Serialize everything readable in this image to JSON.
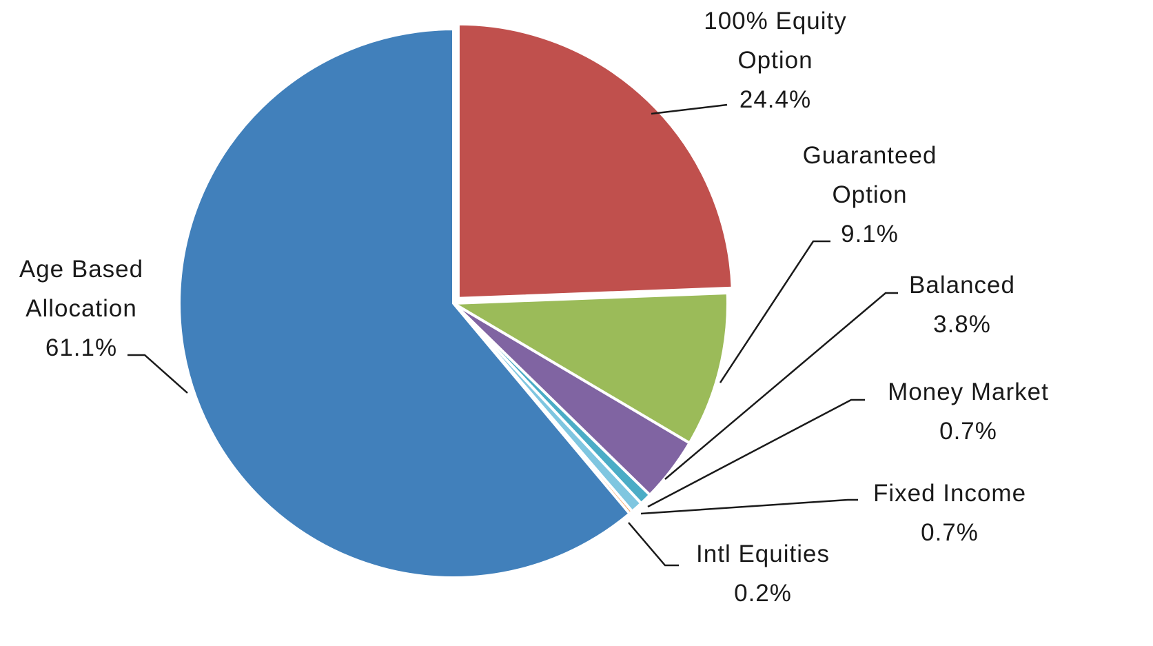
{
  "chart_data": {
    "type": "pie",
    "categories": [
      "100% Equity Option",
      "Guaranteed Option",
      "Balanced",
      "Money Market",
      "Fixed Income",
      "Intl Equities",
      "Age Based Allocation"
    ],
    "values": [
      24.4,
      9.1,
      3.8,
      0.7,
      0.7,
      0.2,
      61.1
    ],
    "value_labels": [
      "24.4%",
      "9.1%",
      "3.8%",
      "0.7%",
      "0.7%",
      "0.2%",
      "61.1%"
    ],
    "colors": [
      "#c0504d",
      "#9bbb59",
      "#8064a2",
      "#4bacc6",
      "#7fc6e0",
      "#f79646",
      "#4180bb"
    ]
  }
}
